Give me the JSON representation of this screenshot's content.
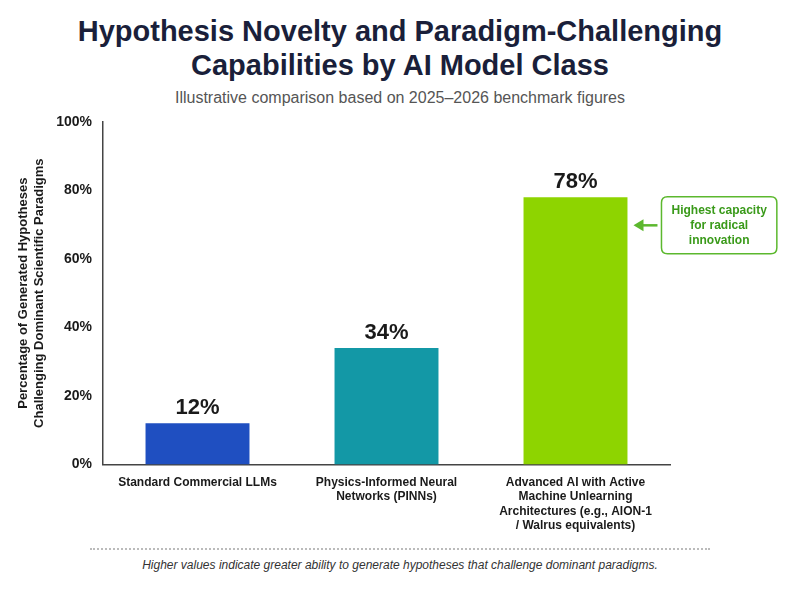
{
  "chart_data": {
    "type": "bar",
    "title": "Hypothesis Novelty and Paradigm-Challenging Capabilities by AI Model Class",
    "subtitle": "Illustrative comparison based on 2025–2026 benchmark figures",
    "y_label": "Percentage of Generated Hypotheses Challenging Dominant Scientific Paradigms",
    "categories": [
      "Standard Commercial LLMs",
      "Physics-Informed Neural Networks (PINNs)",
      "Advanced AI with Active Machine Unlearning Architectures (e.g., AION-1 / Walrus equivalents)"
    ],
    "values": [
      12,
      34,
      78
    ],
    "value_labels": [
      "12%",
      "34%",
      "78%"
    ],
    "colors": [
      "#1f4fc1",
      "#1398a6",
      "#8ed400"
    ],
    "ylim": [
      0,
      100
    ],
    "yticks": [
      {
        "value": 0,
        "label": "0%"
      },
      {
        "value": 20,
        "label": "20%"
      },
      {
        "value": 40,
        "label": "40%"
      },
      {
        "value": 60,
        "label": "60%"
      },
      {
        "value": 80,
        "label": "80%"
      },
      {
        "value": 100,
        "label": "100%"
      }
    ],
    "grid": false,
    "data_labels": true,
    "annotation": "Highest capacity for radical innovation",
    "note": "Higher values indicate greater ability to generate hypotheses that challenge dominant paradigms."
  }
}
